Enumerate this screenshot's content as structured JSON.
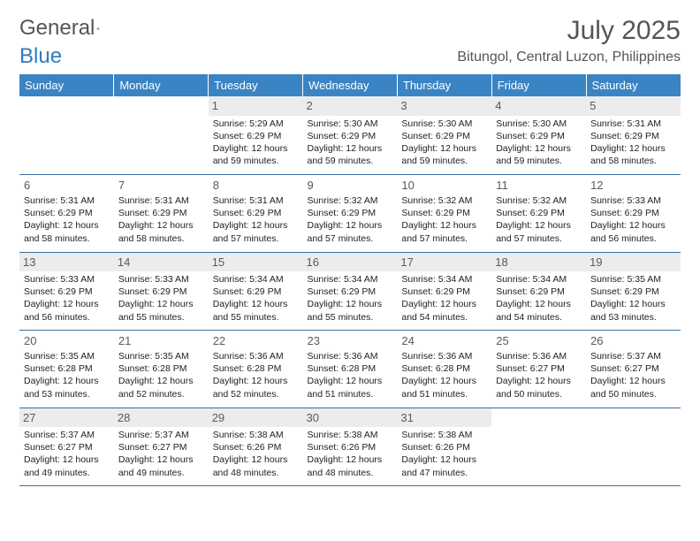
{
  "brand": {
    "general": "General",
    "blue": "Blue"
  },
  "title": "July 2025",
  "location": "Bitungol, Central Luzon, Philippines",
  "colors": {
    "header_bg": "#3b84c4",
    "header_text": "#ffffff",
    "border": "#3b6f9e",
    "shade": "#ececec",
    "title_color": "#555555",
    "brand_blue": "#2f7bbf"
  },
  "weekdays": [
    "Sunday",
    "Monday",
    "Tuesday",
    "Wednesday",
    "Thursday",
    "Friday",
    "Saturday"
  ],
  "cells": [
    {
      "day": null
    },
    {
      "day": null
    },
    {
      "day": 1,
      "shade": true,
      "sunrise": "5:29 AM",
      "sunset": "6:29 PM",
      "daylight": "12 hours and 59 minutes."
    },
    {
      "day": 2,
      "shade": true,
      "sunrise": "5:30 AM",
      "sunset": "6:29 PM",
      "daylight": "12 hours and 59 minutes."
    },
    {
      "day": 3,
      "shade": true,
      "sunrise": "5:30 AM",
      "sunset": "6:29 PM",
      "daylight": "12 hours and 59 minutes."
    },
    {
      "day": 4,
      "shade": true,
      "sunrise": "5:30 AM",
      "sunset": "6:29 PM",
      "daylight": "12 hours and 59 minutes."
    },
    {
      "day": 5,
      "shade": true,
      "sunrise": "5:31 AM",
      "sunset": "6:29 PM",
      "daylight": "12 hours and 58 minutes."
    },
    {
      "day": 6,
      "shade": false,
      "sunrise": "5:31 AM",
      "sunset": "6:29 PM",
      "daylight": "12 hours and 58 minutes."
    },
    {
      "day": 7,
      "shade": false,
      "sunrise": "5:31 AM",
      "sunset": "6:29 PM",
      "daylight": "12 hours and 58 minutes."
    },
    {
      "day": 8,
      "shade": false,
      "sunrise": "5:31 AM",
      "sunset": "6:29 PM",
      "daylight": "12 hours and 57 minutes."
    },
    {
      "day": 9,
      "shade": false,
      "sunrise": "5:32 AM",
      "sunset": "6:29 PM",
      "daylight": "12 hours and 57 minutes."
    },
    {
      "day": 10,
      "shade": false,
      "sunrise": "5:32 AM",
      "sunset": "6:29 PM",
      "daylight": "12 hours and 57 minutes."
    },
    {
      "day": 11,
      "shade": false,
      "sunrise": "5:32 AM",
      "sunset": "6:29 PM",
      "daylight": "12 hours and 57 minutes."
    },
    {
      "day": 12,
      "shade": false,
      "sunrise": "5:33 AM",
      "sunset": "6:29 PM",
      "daylight": "12 hours and 56 minutes."
    },
    {
      "day": 13,
      "shade": true,
      "sunrise": "5:33 AM",
      "sunset": "6:29 PM",
      "daylight": "12 hours and 56 minutes."
    },
    {
      "day": 14,
      "shade": true,
      "sunrise": "5:33 AM",
      "sunset": "6:29 PM",
      "daylight": "12 hours and 55 minutes."
    },
    {
      "day": 15,
      "shade": true,
      "sunrise": "5:34 AM",
      "sunset": "6:29 PM",
      "daylight": "12 hours and 55 minutes."
    },
    {
      "day": 16,
      "shade": true,
      "sunrise": "5:34 AM",
      "sunset": "6:29 PM",
      "daylight": "12 hours and 55 minutes."
    },
    {
      "day": 17,
      "shade": true,
      "sunrise": "5:34 AM",
      "sunset": "6:29 PM",
      "daylight": "12 hours and 54 minutes."
    },
    {
      "day": 18,
      "shade": true,
      "sunrise": "5:34 AM",
      "sunset": "6:29 PM",
      "daylight": "12 hours and 54 minutes."
    },
    {
      "day": 19,
      "shade": true,
      "sunrise": "5:35 AM",
      "sunset": "6:29 PM",
      "daylight": "12 hours and 53 minutes."
    },
    {
      "day": 20,
      "shade": false,
      "sunrise": "5:35 AM",
      "sunset": "6:28 PM",
      "daylight": "12 hours and 53 minutes."
    },
    {
      "day": 21,
      "shade": false,
      "sunrise": "5:35 AM",
      "sunset": "6:28 PM",
      "daylight": "12 hours and 52 minutes."
    },
    {
      "day": 22,
      "shade": false,
      "sunrise": "5:36 AM",
      "sunset": "6:28 PM",
      "daylight": "12 hours and 52 minutes."
    },
    {
      "day": 23,
      "shade": false,
      "sunrise": "5:36 AM",
      "sunset": "6:28 PM",
      "daylight": "12 hours and 51 minutes."
    },
    {
      "day": 24,
      "shade": false,
      "sunrise": "5:36 AM",
      "sunset": "6:28 PM",
      "daylight": "12 hours and 51 minutes."
    },
    {
      "day": 25,
      "shade": false,
      "sunrise": "5:36 AM",
      "sunset": "6:27 PM",
      "daylight": "12 hours and 50 minutes."
    },
    {
      "day": 26,
      "shade": false,
      "sunrise": "5:37 AM",
      "sunset": "6:27 PM",
      "daylight": "12 hours and 50 minutes."
    },
    {
      "day": 27,
      "shade": true,
      "sunrise": "5:37 AM",
      "sunset": "6:27 PM",
      "daylight": "12 hours and 49 minutes."
    },
    {
      "day": 28,
      "shade": true,
      "sunrise": "5:37 AM",
      "sunset": "6:27 PM",
      "daylight": "12 hours and 49 minutes."
    },
    {
      "day": 29,
      "shade": true,
      "sunrise": "5:38 AM",
      "sunset": "6:26 PM",
      "daylight": "12 hours and 48 minutes."
    },
    {
      "day": 30,
      "shade": true,
      "sunrise": "5:38 AM",
      "sunset": "6:26 PM",
      "daylight": "12 hours and 48 minutes."
    },
    {
      "day": 31,
      "shade": true,
      "sunrise": "5:38 AM",
      "sunset": "6:26 PM",
      "daylight": "12 hours and 47 minutes."
    },
    {
      "day": null
    },
    {
      "day": null
    }
  ]
}
